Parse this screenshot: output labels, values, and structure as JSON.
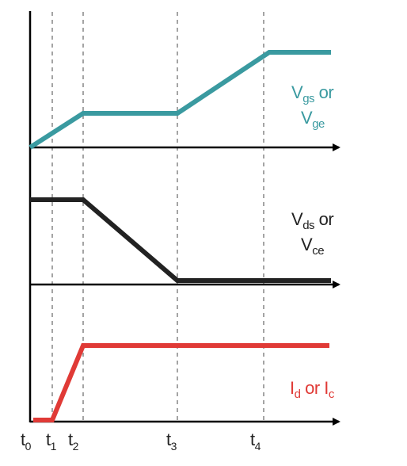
{
  "colors": {
    "gate": "#3a9aa0",
    "drain_voltage": "#222222",
    "current": "#e03a36",
    "axis": "#000000",
    "guide": "#9a9a9a"
  },
  "time_markers": [
    {
      "main": "t",
      "sub": "0"
    },
    {
      "main": "t",
      "sub": "1"
    },
    {
      "main": "t",
      "sub": "2"
    },
    {
      "main": "t",
      "sub": "3"
    },
    {
      "main": "t",
      "sub": "4"
    }
  ],
  "waveforms": {
    "gate": {
      "line1": {
        "main": "V",
        "sub": "gs",
        "rest": " or"
      },
      "line2": {
        "main": "V",
        "sub": "ge"
      }
    },
    "drain_voltage": {
      "line1": {
        "main": "V",
        "sub": "ds",
        "rest": " or"
      },
      "line2": {
        "main": "V",
        "sub": "ce"
      }
    },
    "current": {
      "main1": "I",
      "sub1": "d",
      "mid": " or ",
      "main2": "I",
      "sub2": "c"
    }
  }
}
